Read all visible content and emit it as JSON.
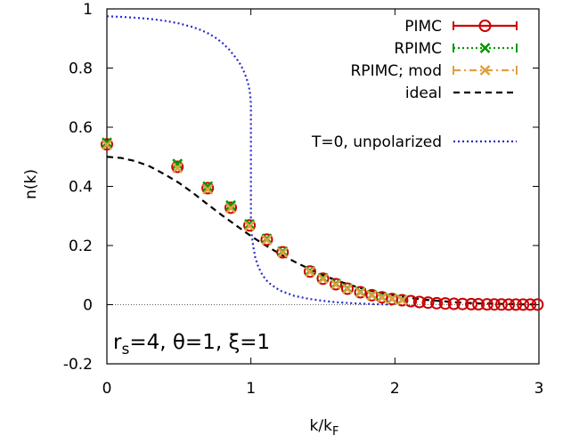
{
  "chart_data": {
    "type": "line",
    "title": "",
    "xlabel": "k/k",
    "xlabel_sub": "F",
    "ylabel": "n(k)",
    "xlim": [
      0,
      3
    ],
    "ylim": [
      -0.2,
      1
    ],
    "xticks": [
      "0",
      "1",
      "2",
      "3"
    ],
    "yticks": [
      "-0.2",
      "0",
      "0.2",
      "0.4",
      "0.6",
      "0.8",
      "1"
    ],
    "legend_position": "top-right",
    "annotation": {
      "parts": [
        "r",
        "s",
        "=4, θ=1, ξ=1"
      ]
    },
    "series": [
      {
        "name": "PIMC",
        "color": "#cc0000",
        "style": "solid",
        "marker": "circle",
        "x": [
          0,
          0.49,
          0.7,
          0.86,
          0.99,
          1.11,
          1.22,
          1.41,
          1.5,
          1.59,
          1.67,
          1.76,
          1.84,
          1.91,
          1.98,
          2.05,
          2.11,
          2.17,
          2.23,
          2.29,
          2.35,
          2.41,
          2.47,
          2.53,
          2.58,
          2.64,
          2.69,
          2.74,
          2.79,
          2.84,
          2.89,
          2.94,
          2.99
        ],
        "y": [
          0.542,
          0.466,
          0.394,
          0.328,
          0.268,
          0.22,
          0.177,
          0.112,
          0.088,
          0.069,
          0.054,
          0.042,
          0.032,
          0.025,
          0.019,
          0.015,
          0.012,
          0.009,
          0.007,
          0.005,
          0.004,
          0.003,
          0.0024,
          0.0018,
          0.0014,
          0.0011,
          0.0008,
          0.0006,
          0.0005,
          0.0004,
          0.0003,
          0.0002,
          0.0002
        ]
      },
      {
        "name": "RPIMC",
        "color": "#009900",
        "style": "dotted",
        "marker": "x",
        "x": [
          0,
          0.49,
          0.7,
          0.86,
          0.99,
          1.11,
          1.22,
          1.41,
          1.5,
          1.59,
          1.67,
          1.76,
          1.84,
          1.91,
          1.98,
          2.05
        ],
        "y": [
          0.548,
          0.476,
          0.4,
          0.336,
          0.272,
          0.223,
          0.18,
          0.114,
          0.09,
          0.071,
          0.055,
          0.043,
          0.033,
          0.026,
          0.02,
          0.016
        ]
      },
      {
        "name": "RPIMC; mod",
        "color": "#e0a040",
        "style": "dashdot",
        "marker": "x",
        "x": [
          0,
          0.49,
          0.7,
          0.86,
          0.99,
          1.11,
          1.22,
          1.41,
          1.5,
          1.59,
          1.67,
          1.76,
          1.84,
          1.91,
          1.98,
          2.05
        ],
        "y": [
          0.54,
          0.462,
          0.39,
          0.326,
          0.266,
          0.219,
          0.176,
          0.111,
          0.087,
          0.068,
          0.053,
          0.041,
          0.031,
          0.024,
          0.019,
          0.015
        ]
      },
      {
        "name": "ideal",
        "color": "#000000",
        "style": "dashed",
        "marker": "none",
        "x": [
          0,
          0.1,
          0.2,
          0.3,
          0.4,
          0.5,
          0.6,
          0.7,
          0.8,
          0.9,
          1.0,
          1.1,
          1.2,
          1.3,
          1.4,
          1.5,
          1.6,
          1.7,
          1.8,
          1.9,
          2.0,
          2.1,
          2.2,
          2.3,
          2.4,
          2.5,
          2.6,
          2.7,
          2.8,
          2.9,
          3.0
        ],
        "y": [
          0.5,
          0.496,
          0.485,
          0.467,
          0.441,
          0.412,
          0.377,
          0.339,
          0.302,
          0.267,
          0.232,
          0.201,
          0.172,
          0.146,
          0.122,
          0.1,
          0.081,
          0.065,
          0.051,
          0.04,
          0.031,
          0.023,
          0.017,
          0.013,
          0.009,
          0.006,
          0.004,
          0.003,
          0.002,
          0.001,
          0.001
        ]
      },
      {
        "name": "T=0, unpolarized",
        "color": "#2a2acc",
        "style": "dotted",
        "marker": "none",
        "x": [
          0,
          0.1,
          0.2,
          0.3,
          0.4,
          0.5,
          0.6,
          0.65,
          0.7,
          0.75,
          0.8,
          0.85,
          0.9,
          0.93,
          0.95,
          0.97,
          0.985,
          0.995,
          1.0,
          1.0,
          1.005,
          1.015,
          1.03,
          1.05,
          1.08,
          1.12,
          1.2,
          1.3,
          1.4,
          1.5,
          1.6,
          1.7,
          1.8,
          1.9,
          2.0
        ],
        "y": [
          0.975,
          0.973,
          0.97,
          0.966,
          0.96,
          0.951,
          0.938,
          0.929,
          0.918,
          0.904,
          0.886,
          0.862,
          0.832,
          0.81,
          0.79,
          0.765,
          0.74,
          0.71,
          0.68,
          0.28,
          0.24,
          0.2,
          0.16,
          0.13,
          0.1,
          0.075,
          0.048,
          0.03,
          0.02,
          0.013,
          0.008,
          0.005,
          0.003,
          0.001,
          0.0
        ]
      }
    ]
  }
}
